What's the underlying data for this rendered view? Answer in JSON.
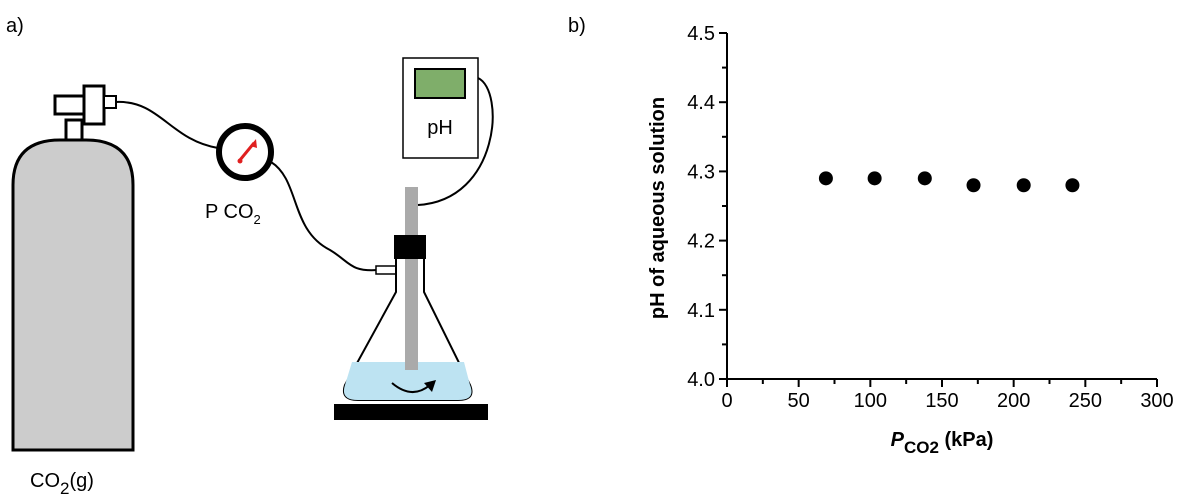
{
  "diagram": {
    "panel_label": "a)",
    "meter": "pH",
    "gauge": {
      "text": "P CO",
      "subscript": "2"
    },
    "cylinder": {
      "text": "CO",
      "subscript": "2",
      "suffix": "(g)"
    }
  },
  "chart_data": {
    "type": "scatter",
    "panel_label": "b)",
    "ylabel": "pH of aqueous solution",
    "xlabel": {
      "symbol": "P",
      "subscript": "CO2",
      "unit": "(kPa)"
    },
    "x": [
      69,
      103,
      138,
      172,
      207,
      241
    ],
    "values": [
      4.29,
      4.29,
      4.29,
      4.28,
      4.28,
      4.28
    ],
    "color": "#000000",
    "xlim": [
      0,
      300
    ],
    "xticks": [
      0,
      50,
      100,
      150,
      200,
      250,
      300
    ],
    "xminorticks": [
      25,
      75,
      125,
      175,
      225,
      275
    ],
    "ylim": [
      4.0,
      4.5
    ],
    "yticks": [
      {
        "value": 4,
        "label": "4.0"
      },
      4.1,
      4.2,
      4.3,
      4.4,
      4.5
    ],
    "yminorticks": [
      4.05,
      4.15,
      4.25,
      4.35,
      4.45
    ]
  }
}
